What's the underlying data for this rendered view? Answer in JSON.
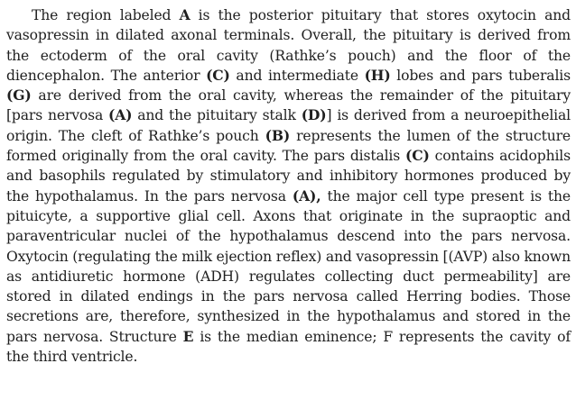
{
  "paragraph": {
    "segments": [
      {
        "text": "The region labeled ",
        "bold": false
      },
      {
        "text": "A",
        "bold": true
      },
      {
        "text": " is the posterior pituitary that stores oxytocin and vasopressin in dilated axonal terminals. Overall, the pituitary is derived from the ectoderm of the oral cavity (Rathke’s pouch) and the floor of the diencephalon. The anterior ",
        "bold": false
      },
      {
        "text": "(C)",
        "bold": true
      },
      {
        "text": " and intermediate ",
        "bold": false
      },
      {
        "text": "(H)",
        "bold": true
      },
      {
        "text": " lobes and pars tuberalis ",
        "bold": false
      },
      {
        "text": "(G)",
        "bold": true
      },
      {
        "text": " are derived from the oral cavity, whereas the remainder of the pituitary [pars nervosa ",
        "bold": false
      },
      {
        "text": "(A)",
        "bold": true
      },
      {
        "text": " and the pituitary stalk ",
        "bold": false
      },
      {
        "text": "(D)",
        "bold": true
      },
      {
        "text": "] is derived from a neuroepithelial origin. The cleft of Rathke’s pouch ",
        "bold": false
      },
      {
        "text": "(B)",
        "bold": true
      },
      {
        "text": " represents the lumen of the structure formed originally from the oral cavity. The pars distalis ",
        "bold": false
      },
      {
        "text": "(C)",
        "bold": true
      },
      {
        "text": " contains acidophils and basophils regulated by stimulatory and inhibitory hormones produced by the hypothalamus. In the pars nervosa ",
        "bold": false
      },
      {
        "text": "(A),",
        "bold": true
      },
      {
        "text": " the major cell type present is the pituicyte, a supportive glial cell. Axons that originate in the supraoptic and paraventricular nuclei of the hypothalamus descend into the pars nervosa. Oxytocin (regulating the milk ejection reflex) and vasopressin [(AVP) also known as antidiuretic hormone (ADH) regulates collecting duct permeability] are stored in dilated endings in the pars nervosa called Herring bodies. Those secretions are, therefore, synthesized in the hypothalamus and stored in the pars nervosa. Structure ",
        "bold": false
      },
      {
        "text": "E",
        "bold": true
      },
      {
        "text": " is the median eminence; F represents the cavity of the third ventricle.",
        "bold": false
      }
    ]
  }
}
